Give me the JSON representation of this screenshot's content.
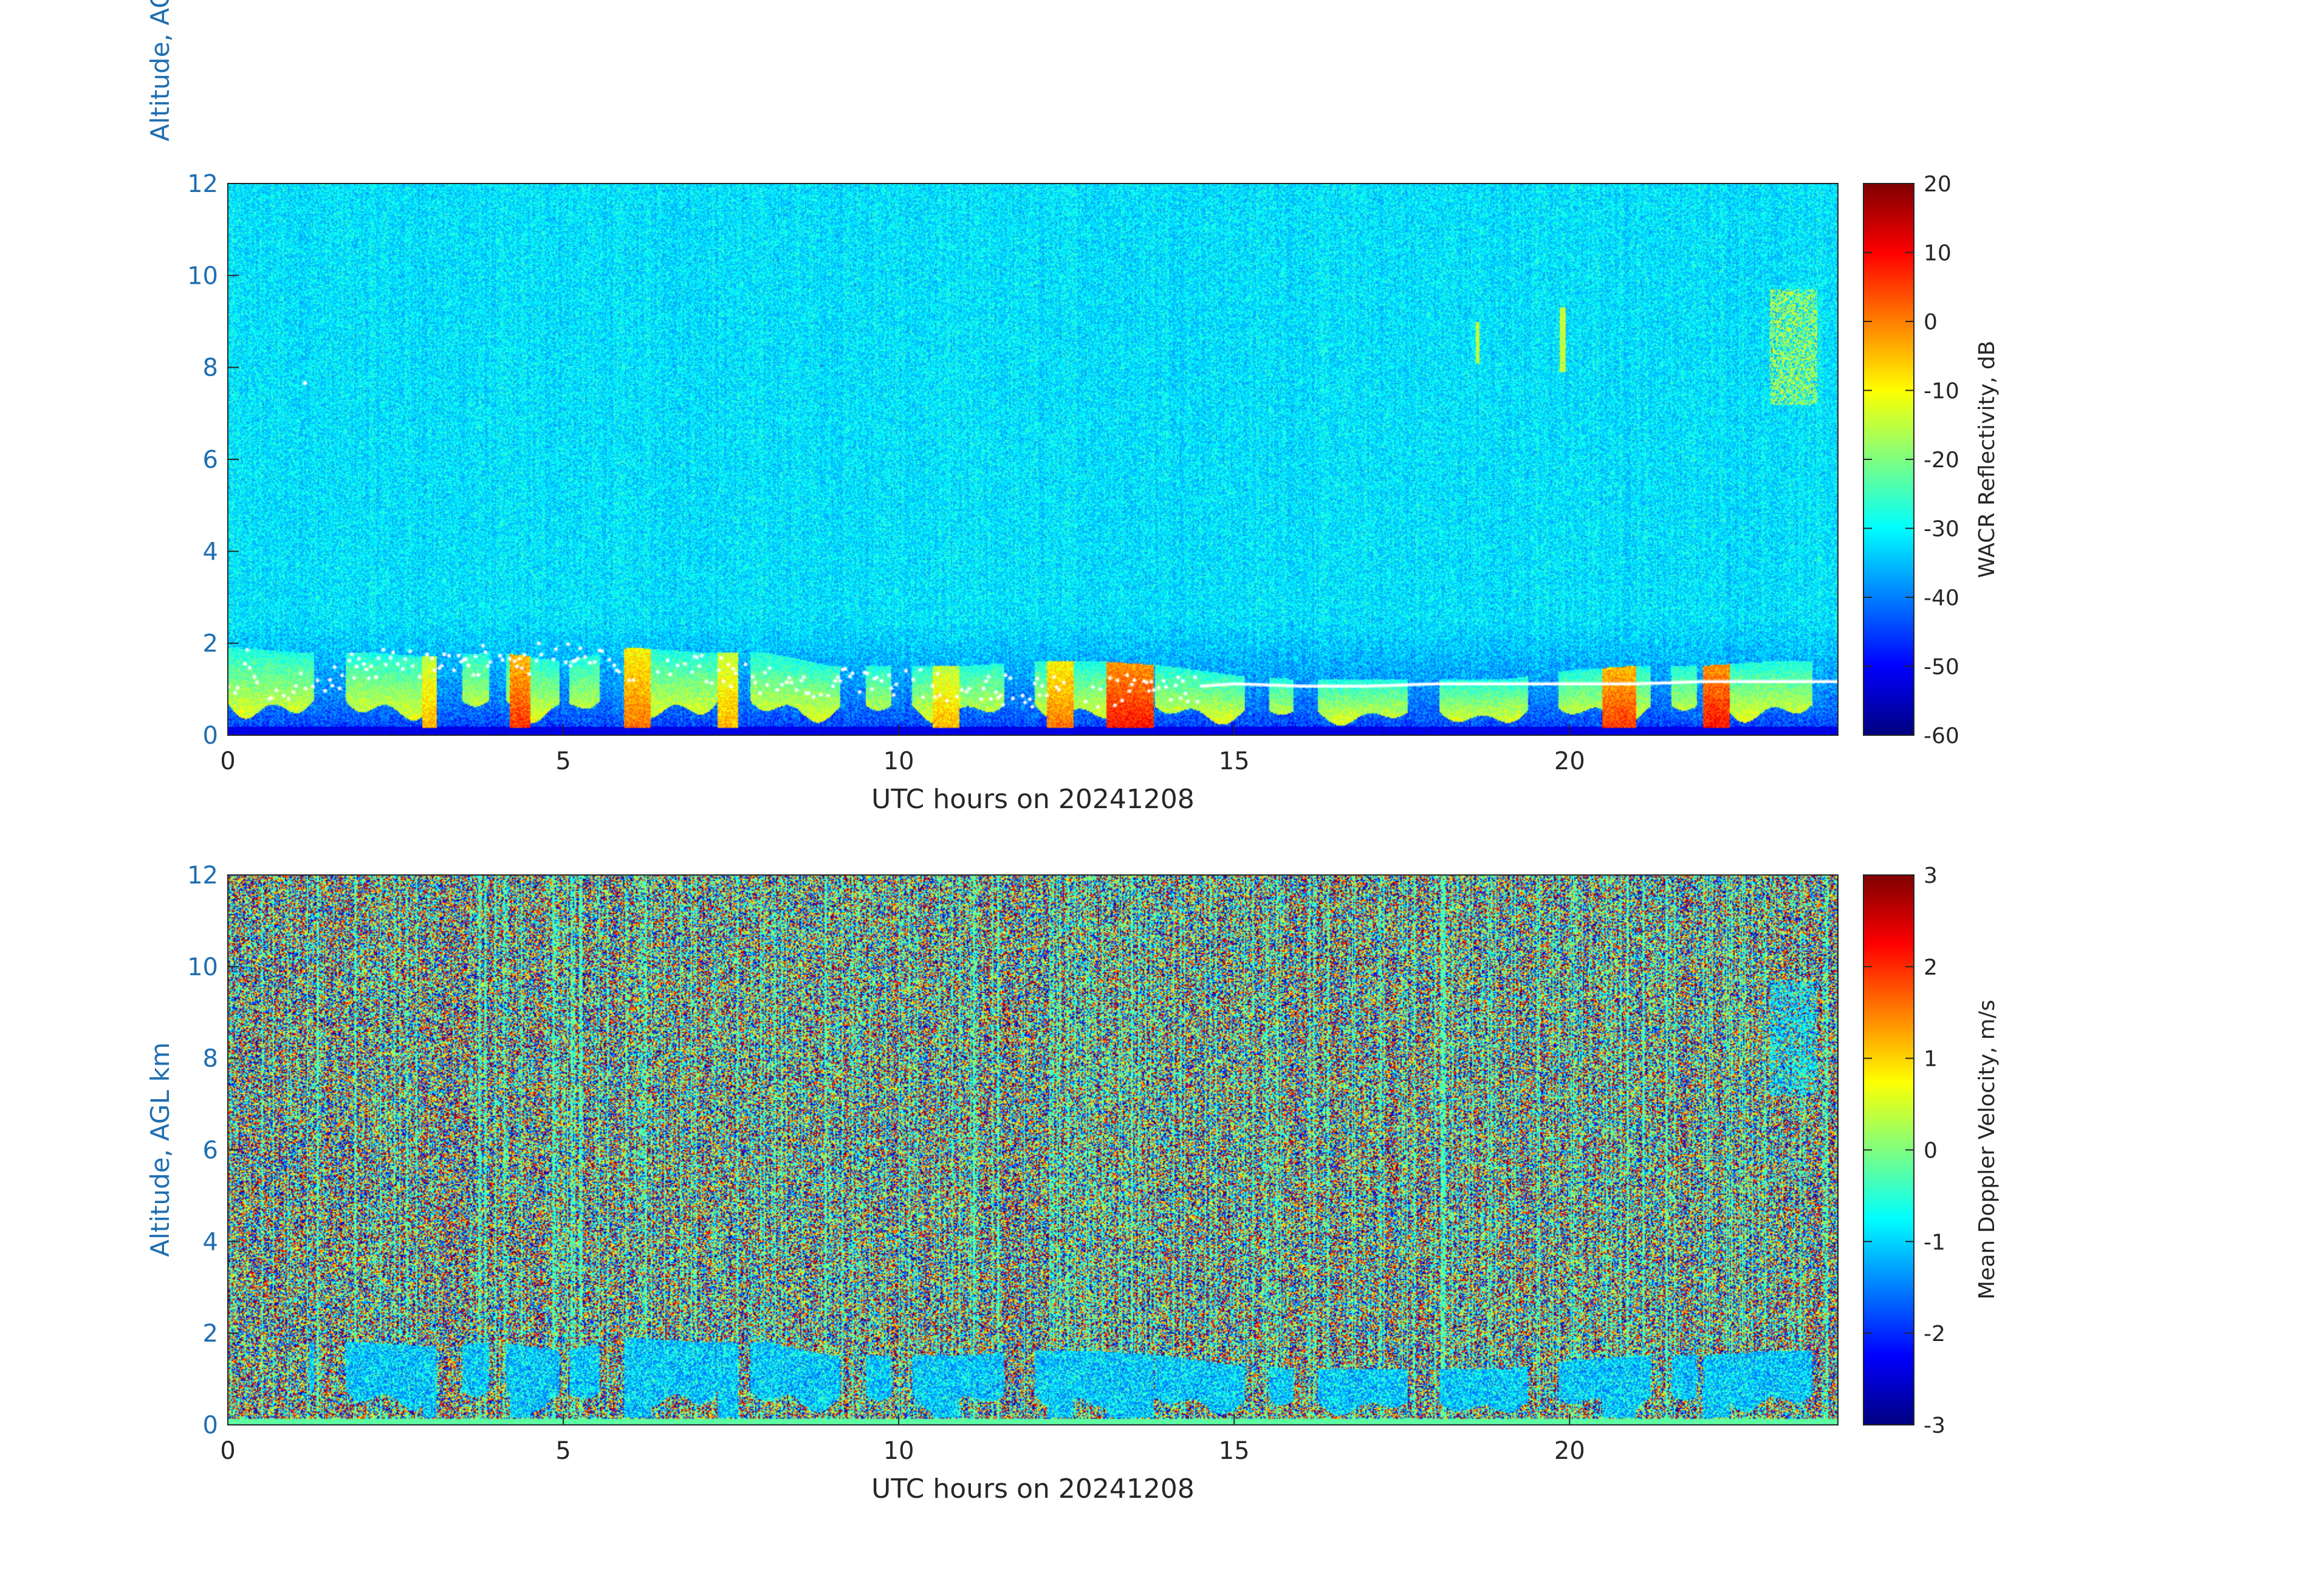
{
  "chart_data": [
    {
      "type": "heatmap",
      "panel": "reflectivity",
      "xlabel": "UTC hours on 20241208",
      "ylabel": "Altitude, AGL km",
      "xlim": [
        0,
        24
      ],
      "ylim": [
        0,
        12
      ],
      "xticks": [
        0,
        5,
        10,
        15,
        20
      ],
      "yticks": [
        0,
        2,
        4,
        6,
        8,
        10,
        12
      ],
      "colorbar": {
        "label": "WACR Reflectivity, dB",
        "range": [
          -60,
          20
        ],
        "ticks": [
          -60,
          -50,
          -40,
          -30,
          -20,
          -10,
          0,
          10,
          20
        ],
        "colormap": "jet"
      },
      "background": {
        "noise_low_alt_value": -48,
        "noise_high_alt_value": -32,
        "transition_alt_km": 2.5
      },
      "cloud_top_km": [
        [
          0,
          1.9
        ],
        [
          1,
          1.8
        ],
        [
          2,
          1.8
        ],
        [
          3,
          1.7
        ],
        [
          4,
          1.8
        ],
        [
          5,
          1.6
        ],
        [
          6,
          1.9
        ],
        [
          7,
          1.8
        ],
        [
          8,
          1.8
        ],
        [
          9,
          1.5
        ],
        [
          10,
          1.5
        ],
        [
          11,
          1.5
        ],
        [
          12,
          1.6
        ],
        [
          13,
          1.6
        ],
        [
          14,
          1.5
        ],
        [
          15,
          1.3
        ],
        [
          16,
          1.2
        ],
        [
          17,
          1.2
        ],
        [
          18,
          1.2
        ],
        [
          19,
          1.2
        ],
        [
          20,
          1.4
        ],
        [
          21,
          1.5
        ],
        [
          22,
          1.5
        ],
        [
          23,
          1.6
        ],
        [
          24,
          1.6
        ]
      ],
      "precip_shafts": [
        {
          "t": [
            2.9,
            3.1
          ],
          "refl": -5
        },
        {
          "t": [
            4.2,
            4.5
          ],
          "refl": 5
        },
        {
          "t": [
            5.9,
            6.3
          ],
          "refl": 0
        },
        {
          "t": [
            7.3,
            7.6
          ],
          "refl": -5
        },
        {
          "t": [
            10.5,
            10.9
          ],
          "refl": -5
        },
        {
          "t": [
            12.2,
            12.6
          ],
          "refl": 0
        },
        {
          "t": [
            13.1,
            13.8
          ],
          "refl": 8
        },
        {
          "t": [
            20.5,
            21.0
          ],
          "refl": 5
        },
        {
          "t": [
            22.0,
            22.4
          ],
          "refl": 8
        }
      ],
      "ceilometer_base_km": [
        [
          0.2,
          1.85
        ],
        [
          0.5,
          1.0
        ],
        [
          1.5,
          1.2
        ],
        [
          2.0,
          1.5
        ],
        [
          3.0,
          1.6
        ],
        [
          4.0,
          1.6
        ],
        [
          5.0,
          1.7
        ],
        [
          6.0,
          1.5
        ],
        [
          7.0,
          1.4
        ],
        [
          8.0,
          1.2
        ],
        [
          9.0,
          1.1
        ],
        [
          10.0,
          1.1
        ],
        [
          11.0,
          1.0
        ],
        [
          12.0,
          0.9
        ],
        [
          13.0,
          0.9
        ],
        [
          14.0,
          1.0
        ],
        [
          15.0,
          1.1
        ],
        [
          16.0,
          1.05
        ],
        [
          17.0,
          1.05
        ],
        [
          18.0,
          1.1
        ],
        [
          19.0,
          1.1
        ],
        [
          20.0,
          1.1
        ],
        [
          21.0,
          1.1
        ],
        [
          22.0,
          1.15
        ],
        [
          23.0,
          1.15
        ],
        [
          24.0,
          1.15
        ]
      ],
      "isolated_points": [
        [
          1.15,
          7.65
        ]
      ]
    },
    {
      "type": "heatmap",
      "panel": "velocity",
      "xlabel": "UTC hours on 20241208",
      "ylabel": "Altitude, AGL km",
      "xlim": [
        0,
        24
      ],
      "ylim": [
        0,
        12
      ],
      "xticks": [
        0,
        5,
        10,
        15,
        20
      ],
      "yticks": [
        0,
        2,
        4,
        6,
        8,
        10,
        12
      ],
      "colorbar": {
        "label": "Mean Doppler Velocity, m/s",
        "range": [
          -3,
          3
        ],
        "ticks": [
          -3,
          -2,
          -1,
          0,
          1,
          2,
          3
        ],
        "colormap": "jet"
      },
      "background": {
        "noise": "random uniform -3..3"
      },
      "cloud_velocity_m_s": -1.0
    }
  ],
  "colors": {
    "axis_tick_blue": "#1f6eb0",
    "axis_black": "#262626",
    "background": "#ffffff"
  }
}
